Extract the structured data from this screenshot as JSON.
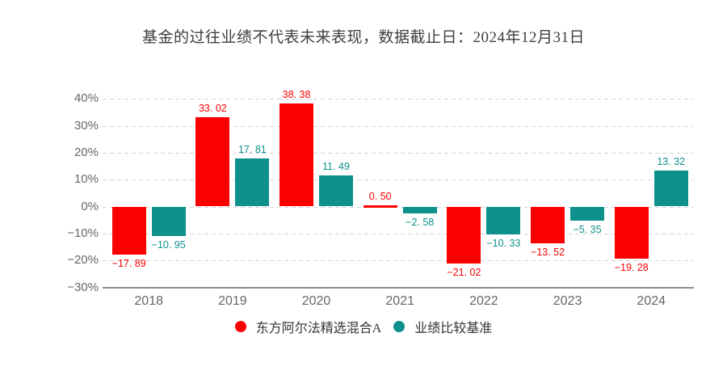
{
  "title": "基金的过往业绩不代表未来表现，数据截止日：2024年12月31日",
  "chart_data": {
    "type": "bar",
    "categories": [
      "2018",
      "2019",
      "2020",
      "2021",
      "2022",
      "2023",
      "2024"
    ],
    "series": [
      {
        "name": "东方阿尔法精选混合A",
        "color": "#fa0000",
        "values": [
          -17.89,
          33.02,
          38.38,
          0.5,
          -21.02,
          -13.52,
          -19.28
        ]
      },
      {
        "name": "业绩比较基准",
        "color": "#0e908c",
        "values": [
          -10.95,
          17.81,
          11.49,
          -2.58,
          -10.33,
          -5.35,
          13.32
        ]
      }
    ],
    "yticks": [
      40,
      30,
      20,
      10,
      0,
      -10,
      -20,
      -30
    ],
    "ytick_suffix": "%",
    "ylim": [
      -30,
      40
    ],
    "grid": "dashed",
    "legend_position": "bottom",
    "value_labels": true
  },
  "styles": {
    "background": "#ffffff",
    "grid_color": "#d4d4d4",
    "axis_color": "#8c8c8c",
    "tick_color": "#666666",
    "title_color": "#3d3d3d",
    "legend_text_color": "#333333"
  }
}
